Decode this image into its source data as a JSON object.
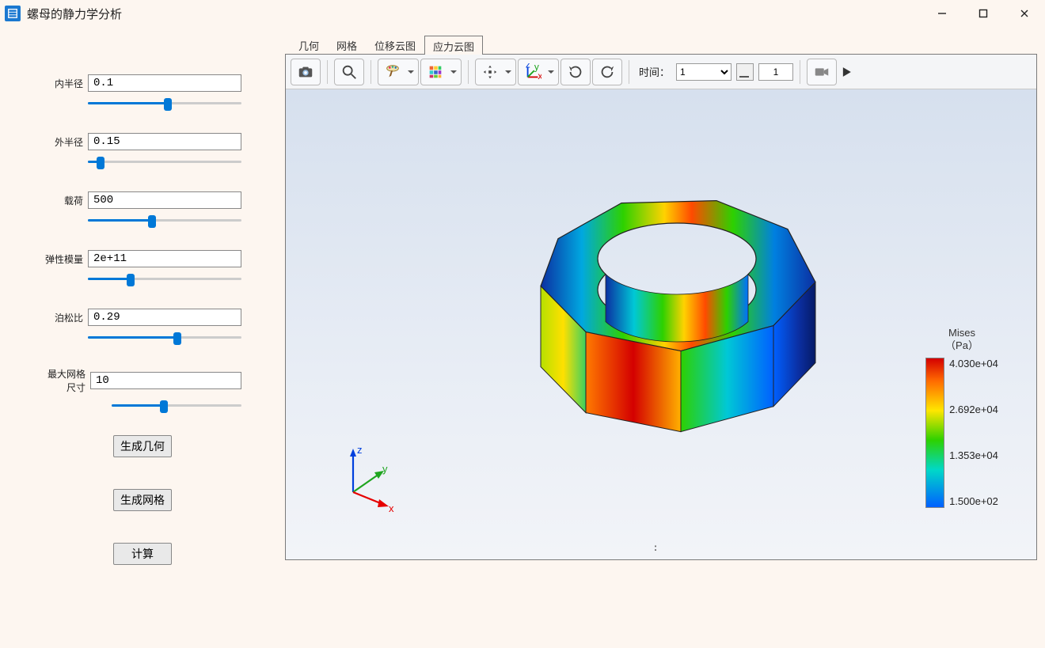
{
  "window": {
    "title": "螺母的静力学分析"
  },
  "params": [
    {
      "key": "inner_radius",
      "label": "内半径",
      "value": "0.1",
      "slider_percent": 52,
      "wide": false
    },
    {
      "key": "outer_radius",
      "label": "外半径",
      "value": "0.15",
      "slider_percent": 8,
      "wide": false
    },
    {
      "key": "load",
      "label": "载荷",
      "value": "500",
      "slider_percent": 42,
      "wide": false
    },
    {
      "key": "young",
      "label": "弹性模量",
      "value": "2e+11",
      "slider_percent": 28,
      "wide": false
    },
    {
      "key": "poisson",
      "label": "泊松比",
      "value": "0.29",
      "slider_percent": 58,
      "wide": false
    },
    {
      "key": "mesh_size",
      "label": "最大网格尺寸",
      "value": "10",
      "slider_percent": 40,
      "wide": true
    }
  ],
  "actions": {
    "gen_geometry": "生成几何",
    "gen_mesh": "生成网格",
    "compute": "计算"
  },
  "tabs": {
    "items": [
      "几何",
      "网格",
      "位移云图",
      "应力云图"
    ],
    "active_index": 3
  },
  "toolbar": {
    "time_label": "时间：",
    "time_select_value": "1",
    "time_text_value": "1"
  },
  "colorbar": {
    "title_line1": "Mises",
    "title_line2": "（Pa）",
    "ticks": [
      "4.030e+04",
      "2.692e+04",
      "1.353e+04",
      "1.500e+02"
    ],
    "gradient_stops": [
      "#d40000",
      "#ff6a00",
      "#ffe600",
      "#2dd100",
      "#00d8c8",
      "#0060ff"
    ]
  },
  "axis": {
    "x_label": "x",
    "y_label": "y",
    "z_label": "z",
    "x_color": "#e60000",
    "y_color": "#1fa51f",
    "z_color": "#0040dd"
  },
  "render": {
    "background_gradient": [
      "#d6e0ee",
      "#f2f4f8"
    ],
    "nut_colors_sample": [
      "#0b2fa2",
      "#0070ff",
      "#00c8d6",
      "#1fd02a",
      "#b6e000",
      "#ffd200",
      "#ff6a00",
      "#d40000"
    ]
  }
}
